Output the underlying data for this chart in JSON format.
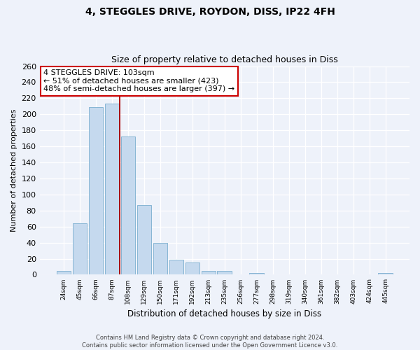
{
  "title1": "4, STEGGLES DRIVE, ROYDON, DISS, IP22 4FH",
  "title2": "Size of property relative to detached houses in Diss",
  "xlabel": "Distribution of detached houses by size in Diss",
  "ylabel": "Number of detached properties",
  "bar_labels": [
    "24sqm",
    "45sqm",
    "66sqm",
    "87sqm",
    "108sqm",
    "129sqm",
    "150sqm",
    "171sqm",
    "192sqm",
    "213sqm",
    "235sqm",
    "256sqm",
    "277sqm",
    "298sqm",
    "319sqm",
    "340sqm",
    "361sqm",
    "382sqm",
    "403sqm",
    "424sqm",
    "445sqm"
  ],
  "bar_values": [
    5,
    64,
    209,
    213,
    172,
    87,
    40,
    19,
    15,
    5,
    5,
    0,
    2,
    0,
    0,
    0,
    0,
    0,
    0,
    0,
    2
  ],
  "bar_color": "#c5d9ee",
  "bar_edge_color": "#7aadcf",
  "vline_color": "#aa0000",
  "vline_x": 3.5,
  "ylim": [
    0,
    260
  ],
  "yticks": [
    0,
    20,
    40,
    60,
    80,
    100,
    120,
    140,
    160,
    180,
    200,
    220,
    240,
    260
  ],
  "annotation_title": "4 STEGGLES DRIVE: 103sqm",
  "annotation_line1": "← 51% of detached houses are smaller (423)",
  "annotation_line2": "48% of semi-detached houses are larger (397) →",
  "annotation_box_facecolor": "#ffffff",
  "annotation_box_edgecolor": "#cc0000",
  "footer1": "Contains HM Land Registry data © Crown copyright and database right 2024.",
  "footer2": "Contains public sector information licensed under the Open Government Licence v3.0.",
  "bg_color": "#eef2fa"
}
